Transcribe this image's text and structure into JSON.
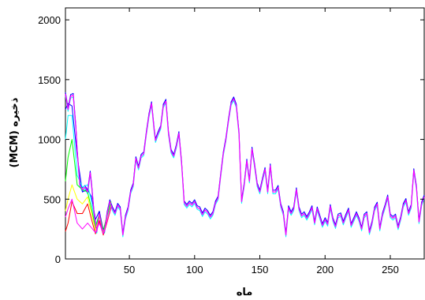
{
  "chart_data": {
    "type": "line",
    "title": "",
    "xlabel": "ماه",
    "ylabel": "(MCM) ذخیره",
    "xlim": [
      1,
      276
    ],
    "ylim": [
      0,
      2100
    ],
    "x_ticks": [
      50,
      100,
      150,
      200,
      250
    ],
    "y_ticks": [
      0,
      500,
      1000,
      1500,
      2000
    ],
    "grid": false,
    "legend": "none",
    "series_colors": [
      "#ff00ff",
      "#0000ff",
      "#00ffff",
      "#00ff00",
      "#ffff00",
      "#ff0000",
      "#000000"
    ],
    "main_series": {
      "x": [
        1,
        3,
        5,
        7,
        9,
        10,
        12,
        14,
        16,
        18,
        20,
        21,
        23,
        25,
        27,
        29,
        31,
        33,
        35,
        37,
        39,
        41,
        43,
        45,
        47,
        49,
        51,
        53,
        55,
        57,
        59,
        61,
        63,
        65,
        67,
        69,
        70,
        72,
        74,
        76,
        78,
        80,
        82,
        84,
        86,
        88,
        90,
        92,
        94,
        96,
        98,
        100,
        102,
        104,
        106,
        108,
        110,
        112,
        114,
        116,
        118,
        120,
        122,
        124,
        126,
        128,
        130,
        132,
        134,
        136,
        138,
        140,
        142,
        144,
        146,
        148,
        150,
        152,
        154,
        156,
        158,
        160,
        162,
        164,
        166,
        168,
        170,
        172,
        174,
        176,
        178,
        180,
        182,
        184,
        186,
        188,
        190,
        192,
        194,
        196,
        198,
        200,
        202,
        204,
        206,
        208,
        210,
        212,
        214,
        216,
        218,
        220,
        222,
        224,
        226,
        228,
        230,
        232,
        234,
        236,
        238,
        240,
        242,
        244,
        246,
        248,
        250,
        252,
        254,
        256,
        258,
        260,
        262,
        264,
        266,
        268,
        270,
        272,
        274,
        276
      ],
      "y": [
        1380,
        1250,
        1360,
        1370,
        1100,
        900,
        620,
        580,
        600,
        560,
        720,
        620,
        370,
        230,
        380,
        250,
        230,
        380,
        480,
        420,
        380,
        450,
        420,
        200,
        350,
        420,
        560,
        620,
        840,
        760,
        860,
        880,
        1050,
        1200,
        1300,
        1080,
        990,
        1050,
        1100,
        1280,
        1320,
        1050,
        900,
        860,
        940,
        1050,
        800,
        470,
        440,
        470,
        450,
        480,
        430,
        420,
        370,
        410,
        390,
        350,
        380,
        470,
        510,
        700,
        880,
        1000,
        1160,
        1300,
        1340,
        1280,
        1050,
        480,
        620,
        820,
        650,
        920,
        780,
        620,
        560,
        660,
        750,
        560,
        780,
        560,
        560,
        600,
        450,
        380,
        200,
        430,
        380,
        420,
        580,
        420,
        360,
        380,
        340,
        380,
        430,
        300,
        420,
        350,
        280,
        330,
        290,
        440,
        330,
        270,
        360,
        370,
        300,
        360,
        410,
        280,
        330,
        380,
        330,
        250,
        360,
        380,
        220,
        300,
        420,
        460,
        250,
        370,
        440,
        520,
        360,
        340,
        360,
        260,
        340,
        450,
        490,
        380,
        440,
        740,
        600,
        310,
        460,
        520
      ]
    },
    "early_series": [
      {
        "x": [
          1,
          3,
          6,
          10,
          14,
          18,
          21,
          24,
          27,
          30,
          33,
          36
        ],
        "y": [
          1250,
          1300,
          1280,
          860,
          560,
          580,
          520,
          330,
          400,
          240,
          360,
          460
        ]
      },
      {
        "x": [
          1,
          3,
          6,
          10,
          14,
          18,
          21,
          24,
          27,
          30,
          33,
          36
        ],
        "y": [
          1000,
          1200,
          1200,
          700,
          600,
          620,
          480,
          280,
          370,
          220,
          360,
          470
        ]
      },
      {
        "x": [
          1,
          3,
          6,
          10,
          14,
          18,
          21,
          24,
          27,
          30,
          33,
          36
        ],
        "y": [
          650,
          850,
          1000,
          620,
          580,
          560,
          420,
          260,
          380,
          230,
          370,
          480
        ]
      },
      {
        "x": [
          1,
          3,
          6,
          10,
          14,
          18,
          21,
          24,
          27,
          30,
          33,
          36
        ],
        "y": [
          400,
          500,
          620,
          500,
          460,
          520,
          380,
          240,
          350,
          210,
          330,
          450
        ]
      },
      {
        "x": [
          1,
          3,
          6,
          10,
          14,
          18,
          21,
          24,
          27,
          30,
          33,
          36
        ],
        "y": [
          230,
          300,
          480,
          380,
          380,
          460,
          330,
          210,
          320,
          200,
          310,
          430
        ]
      },
      {
        "x": [
          1,
          3,
          6,
          10,
          14,
          18,
          21,
          24,
          27,
          30,
          33,
          36
        ],
        "y": [
          350,
          420,
          500,
          300,
          250,
          300,
          260,
          220,
          300,
          210,
          320,
          440
        ]
      }
    ]
  }
}
